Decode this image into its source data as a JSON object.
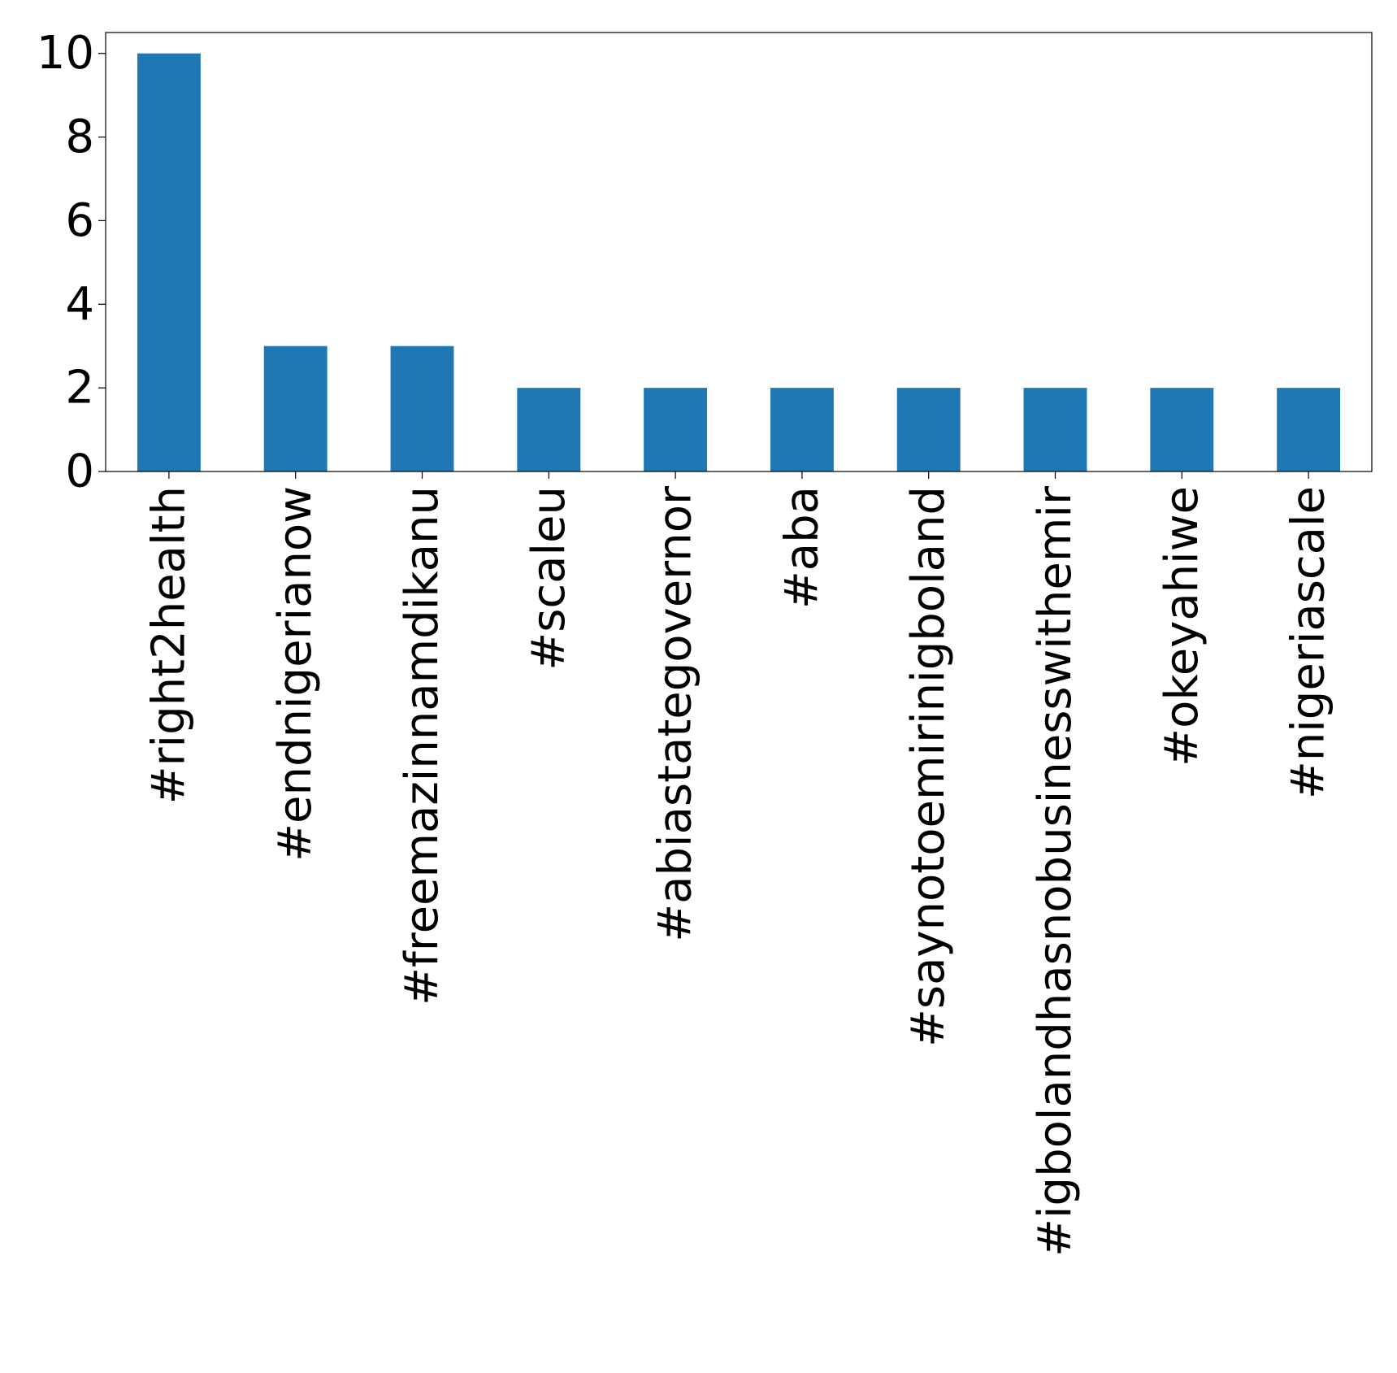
{
  "chart_data": {
    "type": "bar",
    "title": "",
    "xlabel": "",
    "ylabel": "",
    "categories": [
      "#right2health",
      "#endnigerianow",
      "#freemazinnamdikanu",
      "#scaleu",
      "#abiastategovernor",
      "#aba",
      "#saynotoemirinigboland",
      "#igbolandhasnobusinesswithemir",
      "#okeyahiwe",
      "#nigeriascale"
    ],
    "values": [
      10,
      3,
      3,
      2,
      2,
      2,
      2,
      2,
      2,
      2
    ],
    "yticks": [
      0,
      2,
      4,
      6,
      8,
      10
    ],
    "ylim": [
      0,
      10.5
    ],
    "grid": false,
    "legend": "none",
    "bar_color": "#1f77b4"
  }
}
